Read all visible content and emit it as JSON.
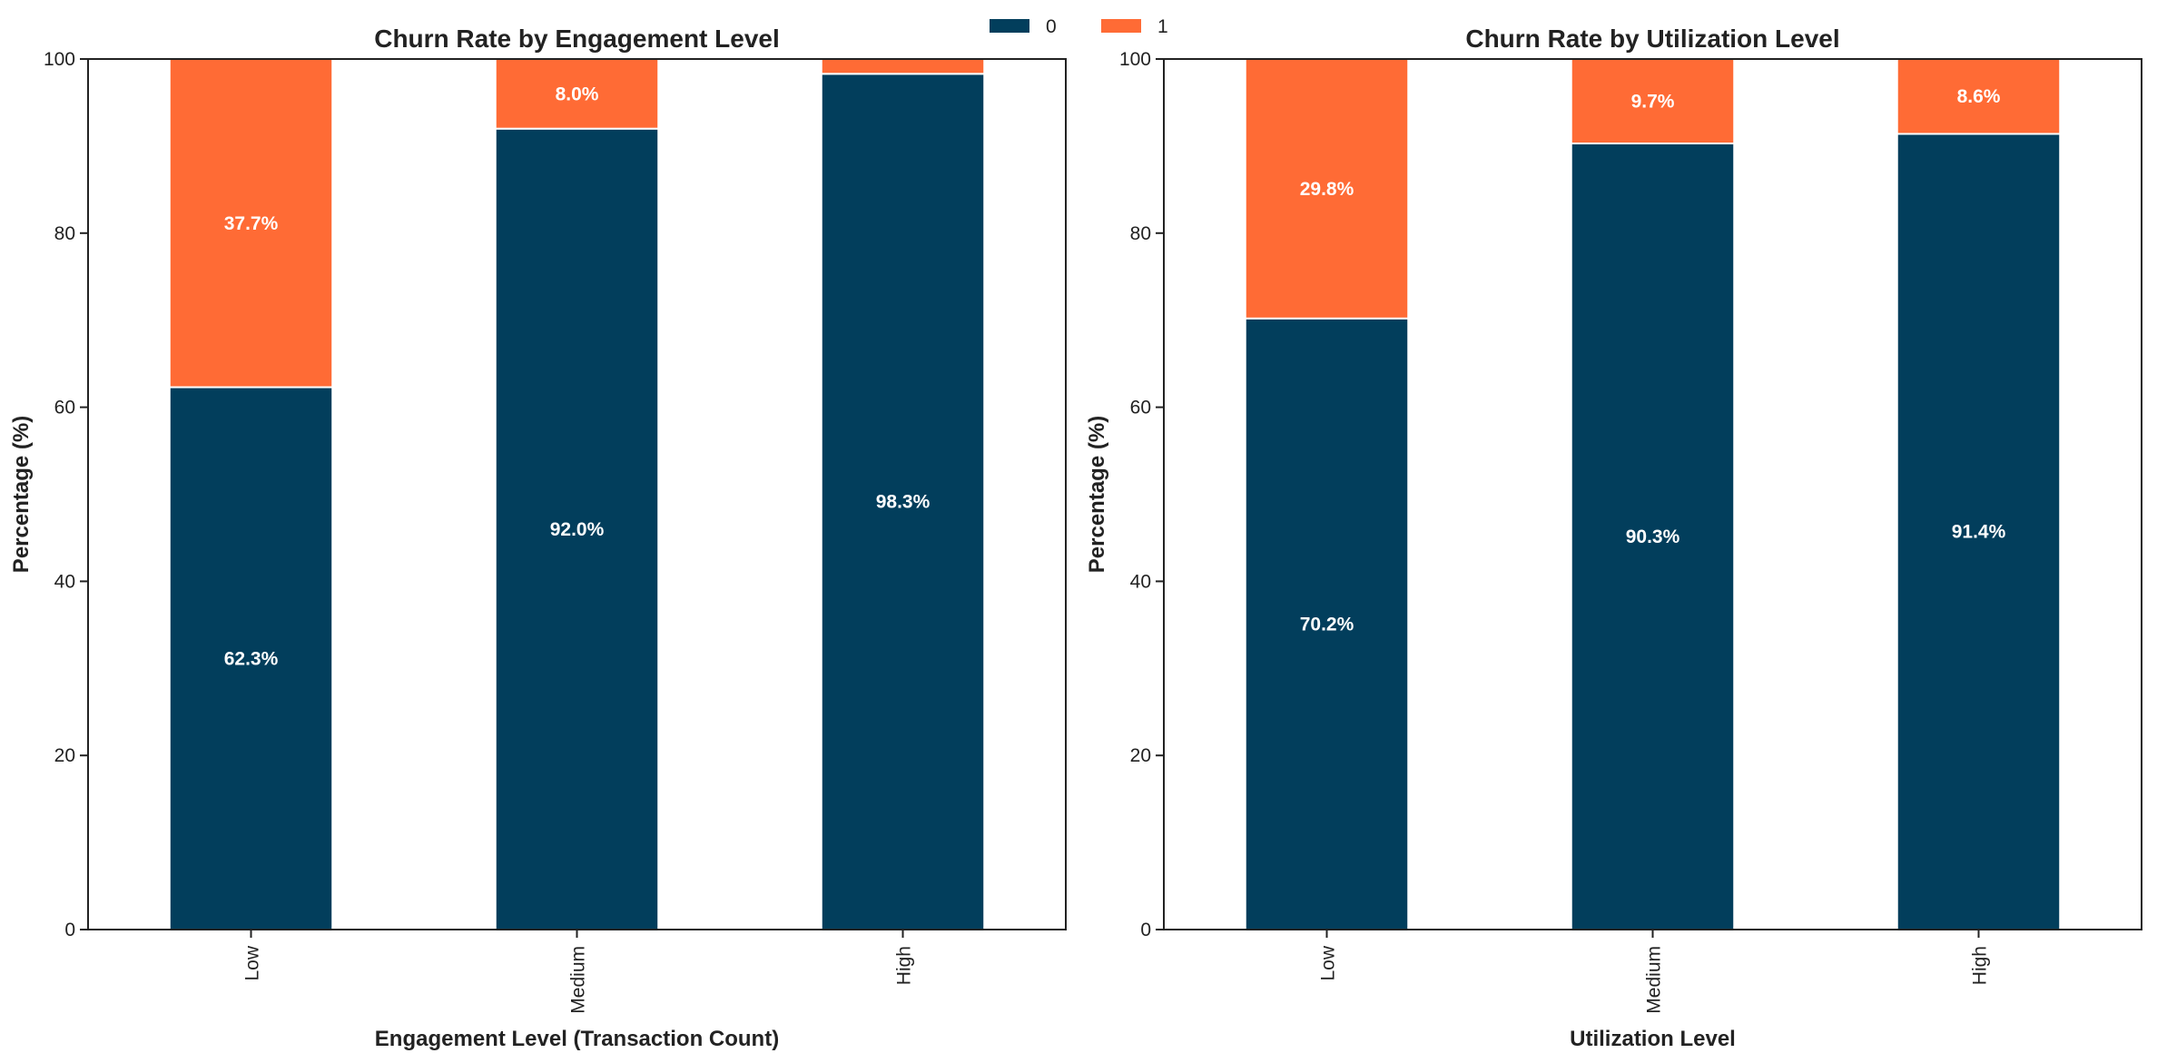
{
  "legend": {
    "items": [
      {
        "label": "0",
        "color": "#023e5c"
      },
      {
        "label": "1",
        "color": "#ff6b35"
      }
    ]
  },
  "chart_data": [
    {
      "type": "bar",
      "stacked": true,
      "title": "Churn Rate by Engagement Level",
      "xlabel": "Engagement Level (Transaction Count)",
      "ylabel": "Percentage (%)",
      "categories": [
        "Low",
        "Medium",
        "High"
      ],
      "ylim": [
        0,
        100
      ],
      "yticks": [
        0,
        20,
        40,
        60,
        80,
        100
      ],
      "series": [
        {
          "name": "0",
          "color": "#023e5c",
          "values": [
            62.3,
            92.0,
            98.3
          ]
        },
        {
          "name": "1",
          "color": "#ff6b35",
          "values": [
            37.7,
            8.0,
            1.7
          ]
        }
      ],
      "data_labels": [
        [
          "62.3%",
          "92.0%",
          "98.3%"
        ],
        [
          "37.7%",
          "8.0%",
          ""
        ]
      ]
    },
    {
      "type": "bar",
      "stacked": true,
      "title": "Churn Rate by Utilization Level",
      "xlabel": "Utilization Level",
      "ylabel": "Percentage (%)",
      "categories": [
        "Low",
        "Medium",
        "High"
      ],
      "ylim": [
        0,
        100
      ],
      "yticks": [
        0,
        20,
        40,
        60,
        80,
        100
      ],
      "series": [
        {
          "name": "0",
          "color": "#023e5c",
          "values": [
            70.2,
            90.3,
            91.4
          ]
        },
        {
          "name": "1",
          "color": "#ff6b35",
          "values": [
            29.8,
            9.7,
            8.6
          ]
        }
      ],
      "data_labels": [
        [
          "70.2%",
          "90.3%",
          "91.4%"
        ],
        [
          "29.8%",
          "9.7%",
          "8.6%"
        ]
      ]
    }
  ]
}
